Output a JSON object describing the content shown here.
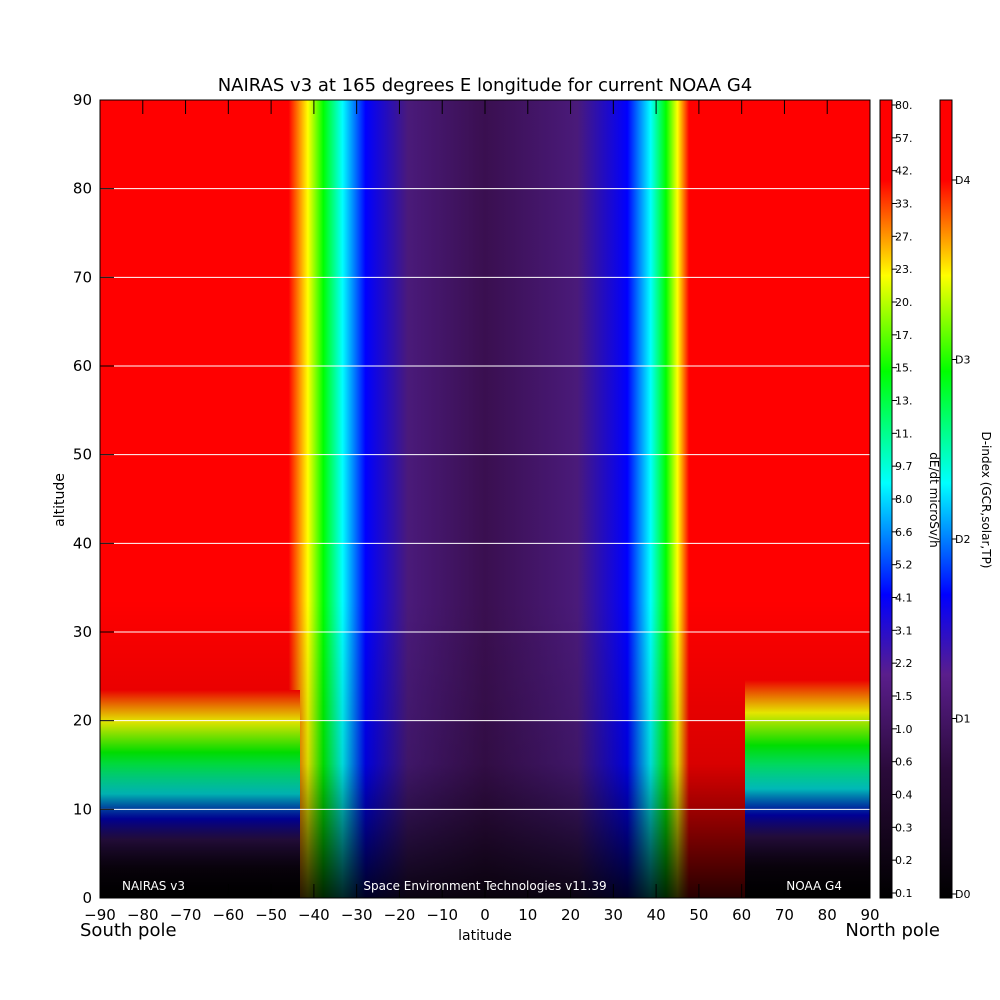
{
  "chart_data": {
    "type": "heatmap",
    "title": "NAIRAS v3 at 165 degrees E longitude for current NOAA G4",
    "xlabel": "latitude",
    "ylabel": "altitude",
    "x_ticks": [
      -90,
      -80,
      -70,
      -60,
      -50,
      -40,
      -30,
      -20,
      -10,
      0,
      10,
      20,
      30,
      40,
      50,
      60,
      70,
      80,
      90
    ],
    "y_ticks": [
      0,
      10,
      20,
      30,
      40,
      50,
      60,
      70,
      80,
      90
    ],
    "xlim": [
      -90,
      90
    ],
    "ylim": [
      0,
      90
    ],
    "y_gridlines": true,
    "x_end_labels": {
      "left": "South pole",
      "right": "North pole"
    },
    "footer": {
      "left": "NAIRAS v3",
      "center": "Space Environment Technologies v11.39",
      "right": "NOAA G4"
    },
    "colorbar_dose": {
      "label": "dE/dt microSv/h",
      "ticks": [
        "80.",
        "57.",
        "42.",
        "33.",
        "27.",
        "23.",
        "20.",
        "17.",
        "15.",
        "13.",
        "11.",
        "9.7",
        "8.0",
        "6.6",
        "5.2",
        "4.1",
        "3.1",
        "2.2",
        "1.5",
        "1.0",
        "0.6",
        "0.4",
        "0.3",
        "0.2",
        "0.1"
      ]
    },
    "colorbar_dindex": {
      "label": "D-index (GCR,solar,TP)",
      "ticks": [
        "D4",
        "D3",
        "D2",
        "D1",
        "D0"
      ]
    },
    "colorscale": [
      "#000000",
      "#2a0a3a",
      "#5a1e8c",
      "#0000ff",
      "#00ffff",
      "#00ff00",
      "#ffff00",
      "#ff0000"
    ],
    "field_model": {
      "description_values": "dose rate field rendered by latitude band",
      "red_cap_altitude_south": [
        21,
        24
      ],
      "red_cap_altitude_north": [
        24,
        24
      ],
      "transition_latitude_south": -45,
      "transition_latitude_north": 57
    }
  }
}
